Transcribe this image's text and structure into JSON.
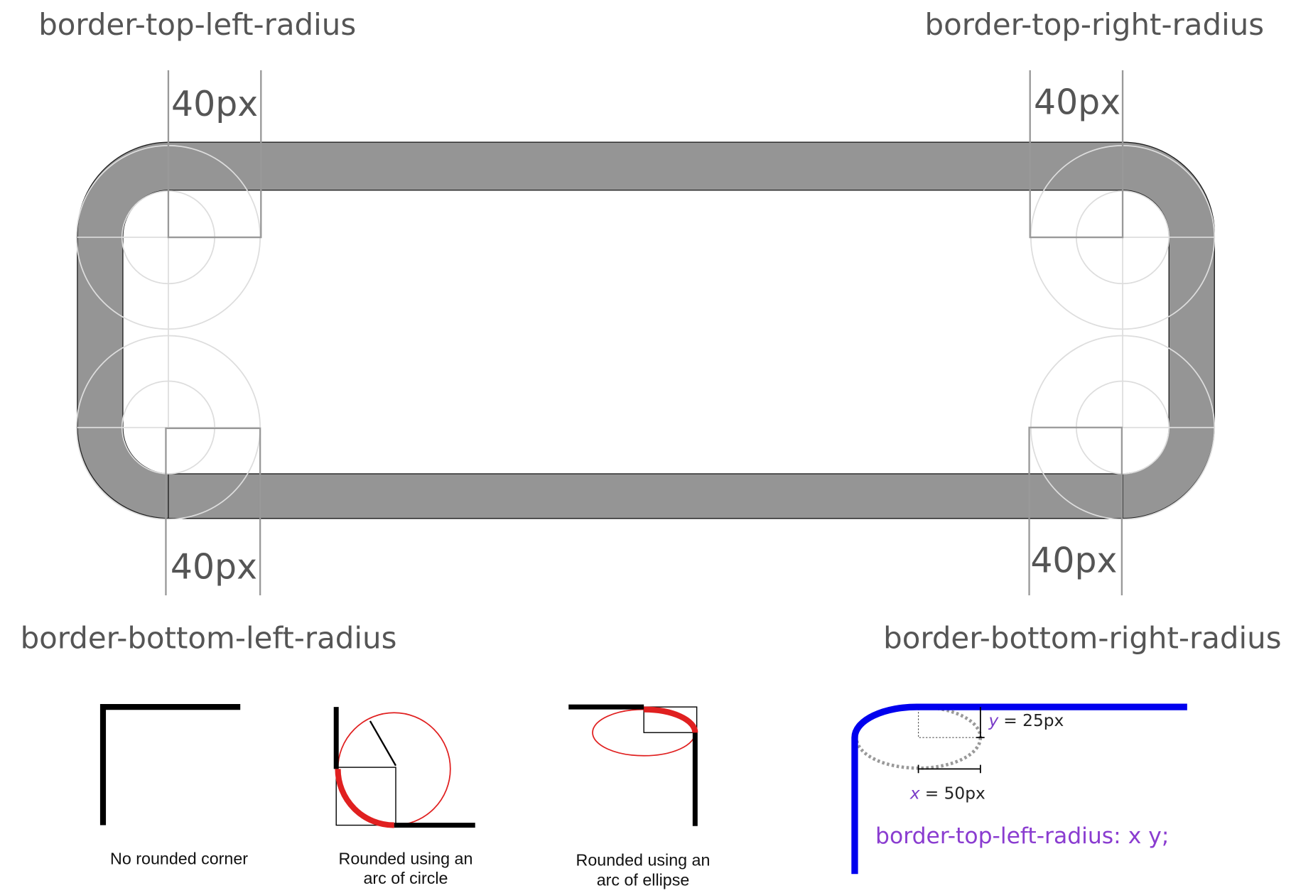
{
  "corners": {
    "top_left": "border-top-left-radius",
    "top_right": "border-top-right-radius",
    "bottom_left": "border-bottom-left-radius",
    "bottom_right": "border-bottom-right-radius"
  },
  "dimensions": [
    "40px",
    "40px",
    "40px",
    "40px"
  ],
  "captions": [
    [
      "No rounded corner"
    ],
    [
      "Rounded using an",
      "arc of circle"
    ],
    [
      "Rounded using an",
      "arc of ellipse"
    ]
  ],
  "ellipse_example": {
    "y_var": "y",
    "y_rest": "= 25px",
    "x_var": "x",
    "x_rest": "= 50px",
    "code": "border-top-left-radius: x y;"
  }
}
